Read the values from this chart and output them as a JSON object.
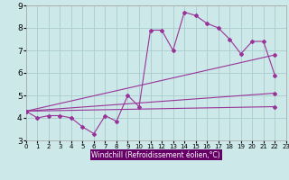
{
  "bg_color": "#cce8e8",
  "grid_color": "#aacccc",
  "line_color": "#993399",
  "marker": "D",
  "markersize": 2.0,
  "linewidth": 0.8,
  "xlabel": "Windchill (Refroidissement éolien,°C)",
  "xlabel_color": "#ffffff",
  "xlabel_bg": "#660066",
  "xlim": [
    0,
    23
  ],
  "ylim": [
    3,
    9
  ],
  "yticks": [
    3,
    4,
    5,
    6,
    7,
    8,
    9
  ],
  "xticks": [
    0,
    1,
    2,
    3,
    4,
    5,
    6,
    7,
    8,
    9,
    10,
    11,
    12,
    13,
    14,
    15,
    16,
    17,
    18,
    19,
    20,
    21,
    22,
    23
  ],
  "lines": [
    {
      "x": [
        0,
        1,
        2,
        3,
        4,
        5,
        6,
        7,
        8,
        9,
        10,
        11,
        12,
        13,
        14,
        15,
        16,
        17,
        18,
        19,
        20,
        21,
        22
      ],
      "y": [
        4.3,
        4.0,
        4.1,
        4.1,
        4.0,
        3.6,
        3.3,
        4.1,
        3.85,
        5.0,
        4.5,
        7.9,
        7.9,
        7.0,
        8.7,
        8.55,
        8.2,
        8.0,
        7.5,
        6.85,
        7.4,
        7.4,
        5.9
      ],
      "has_markers": true
    },
    {
      "x": [
        0,
        22
      ],
      "y": [
        4.3,
        6.8
      ],
      "has_markers": false
    },
    {
      "x": [
        0,
        22
      ],
      "y": [
        4.3,
        5.1
      ],
      "has_markers": false
    },
    {
      "x": [
        0,
        22
      ],
      "y": [
        4.3,
        4.5
      ],
      "has_markers": false
    }
  ]
}
